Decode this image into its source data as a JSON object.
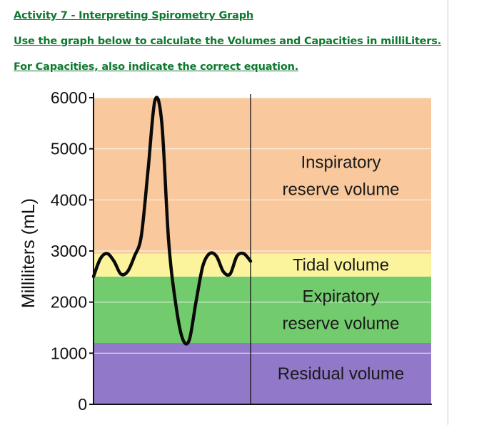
{
  "doc": {
    "title": "Activity 7 -  Interpreting Spirometry Graph",
    "instruction": "Use the graph below to calculate the Volumes and Capacities in milliLiters.",
    "note": "For Capacities, also indicate the correct equation."
  },
  "chart_data": {
    "type": "line",
    "title": "",
    "xlabel": "",
    "ylabel": "Milliliters (mL)",
    "ylim": [
      0,
      6000
    ],
    "yticks": [
      0,
      1000,
      2000,
      3000,
      4000,
      5000,
      6000
    ],
    "ytick_labels": [
      "0",
      "1000",
      "2000",
      "3000",
      "4000",
      "5000",
      "6000"
    ],
    "grid": true,
    "zones": [
      {
        "name": "residual",
        "label_lines": [
          "Residual volume"
        ],
        "from": 0,
        "to": 1200,
        "color": "#9178c8"
      },
      {
        "name": "expiratory-reserve",
        "label_lines": [
          "Expiratory",
          "reserve volume"
        ],
        "from": 1200,
        "to": 2500,
        "color": "#72cc6e"
      },
      {
        "name": "tidal",
        "label_lines": [
          "Tidal volume"
        ],
        "from": 2500,
        "to": 2950,
        "color": "#fbf49c"
      },
      {
        "name": "inspiratory-reserve",
        "label_lines": [
          "Inspiratory",
          "reserve volume"
        ],
        "from": 2950,
        "to": 6000,
        "color": "#f9c89c"
      }
    ],
    "series": [
      {
        "values": [
          2500,
          2850,
          2950,
          2800,
          2550,
          2600,
          2900,
          3300,
          4600,
          5950,
          5500,
          3200,
          2000,
          1300,
          1250,
          2000,
          2700,
          2950,
          2900,
          2600,
          2550,
          2900,
          2950,
          2800
        ]
      }
    ]
  }
}
